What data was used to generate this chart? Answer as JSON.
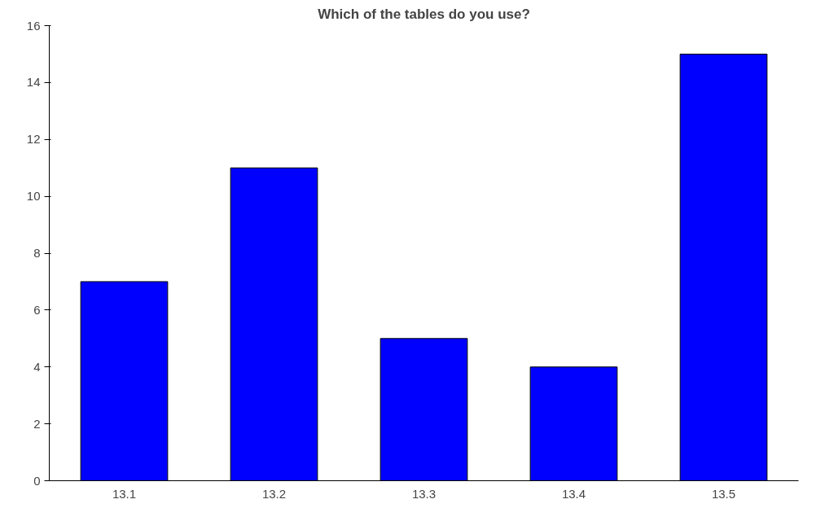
{
  "chart_data": {
    "type": "bar",
    "title": "Which of the tables do you use?",
    "categories": [
      "13.1",
      "13.2",
      "13.3",
      "13.4",
      "13.5"
    ],
    "values": [
      7,
      11,
      5,
      4,
      15
    ],
    "color": "#0000ff",
    "ylim": [
      0,
      16
    ],
    "yticks": [
      0,
      2,
      4,
      6,
      8,
      10,
      12,
      14,
      16
    ],
    "grid": false
  }
}
